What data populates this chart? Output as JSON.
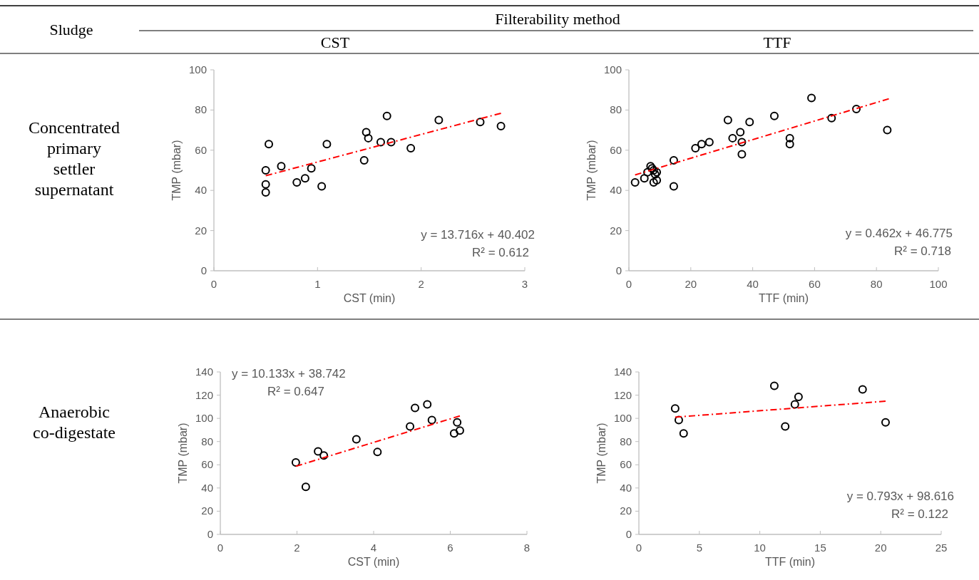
{
  "chart_data": [
    {
      "type": "other",
      "annotations": [
        "Sludge",
        "Filterability method",
        "CST",
        "TTF",
        "Concentrated primary settler supernatant",
        "Anaerobic co-digestate"
      ]
    },
    {
      "type": "scatter",
      "xlabel": "CST (min)",
      "ylabel": "TMP (mbar)",
      "xlim": [
        0,
        3
      ],
      "xticks": [
        0,
        1,
        2,
        3
      ],
      "ylim": [
        0,
        100
      ],
      "yticks": [
        0,
        20,
        40,
        60,
        80,
        100
      ],
      "annotations": [
        "y = 13.716x + 40.402",
        "R² = 0.612"
      ],
      "series": [
        {
          "type": "scatter",
          "marker": "circle",
          "color": "#000000",
          "x": [
            0.5,
            0.5,
            0.5,
            0.53,
            0.65,
            0.8,
            0.88,
            0.94,
            1.04,
            1.09,
            1.45,
            1.47,
            1.49,
            1.61,
            1.67,
            1.71,
            1.9,
            2.17,
            2.57,
            2.77
          ],
          "values": [
            50,
            43,
            39,
            63,
            52,
            44,
            46,
            51,
            42,
            63,
            55,
            69,
            66,
            64,
            77,
            64,
            61,
            75,
            74,
            72
          ]
        },
        {
          "type": "line",
          "color": "#ff0000",
          "line_style": "dashed",
          "x": [
            0.5,
            2.77
          ],
          "values": [
            47.3,
            78.4
          ]
        }
      ]
    },
    {
      "type": "scatter",
      "xlabel": "TTF (min)",
      "ylabel": "TMP (mbar)",
      "xlim": [
        0,
        100
      ],
      "xticks": [
        0,
        20,
        40,
        60,
        80,
        100
      ],
      "ylim": [
        0,
        100
      ],
      "yticks": [
        0,
        20,
        40,
        60,
        80,
        100
      ],
      "annotations": [
        "y = 0.462x + 46.775",
        "R² = 0.718"
      ],
      "series": [
        {
          "type": "scatter",
          "marker": "circle",
          "color": "#000000",
          "x": [
            2,
            5,
            6,
            7,
            7.5,
            8,
            8.5,
            8,
            9,
            9,
            14.5,
            14.5,
            21.5,
            23.5,
            26,
            32,
            33.5,
            36,
            36.5,
            36.5,
            39,
            47,
            52,
            52,
            59,
            65.5,
            73.5,
            83.5
          ],
          "values": [
            44,
            46,
            49,
            52,
            51,
            50,
            48,
            44,
            45,
            49,
            55,
            42,
            61,
            63,
            64,
            75,
            66,
            69,
            58,
            64,
            74,
            77,
            66,
            63,
            86,
            76,
            80.5,
            70
          ]
        },
        {
          "type": "line",
          "color": "#ff0000",
          "line_style": "dashed",
          "x": [
            2,
            84
          ],
          "values": [
            47.7,
            85.6
          ]
        }
      ]
    },
    {
      "type": "scatter",
      "xlabel": "CST (min)",
      "ylabel": "TMP (mbar)",
      "xlim": [
        0,
        8
      ],
      "xticks": [
        0,
        2,
        4,
        6,
        8
      ],
      "ylim": [
        0,
        140
      ],
      "yticks": [
        0,
        20,
        40,
        60,
        80,
        100,
        120,
        140
      ],
      "annotations": [
        "y = 10.133x + 38.742",
        "R² = 0.647"
      ],
      "series": [
        {
          "type": "scatter",
          "marker": "circle",
          "color": "#000000",
          "x": [
            1.97,
            2.23,
            2.55,
            2.7,
            3.55,
            4.1,
            4.95,
            5.08,
            5.4,
            5.52,
            6.1,
            6.18,
            6.25
          ],
          "values": [
            62,
            41,
            71.5,
            68,
            82,
            71,
            93,
            109,
            112,
            98.5,
            87,
            96.5,
            89.5
          ]
        },
        {
          "type": "line",
          "color": "#ff0000",
          "line_style": "dashed",
          "x": [
            1.97,
            6.25
          ],
          "values": [
            58.7,
            102.1
          ]
        }
      ]
    },
    {
      "type": "scatter",
      "xlabel": "TTF (min)",
      "ylabel": "TMP (mbar)",
      "xlim": [
        0,
        25
      ],
      "xticks": [
        0,
        5,
        10,
        15,
        20,
        25
      ],
      "ylim": [
        0,
        140
      ],
      "yticks": [
        0,
        20,
        40,
        60,
        80,
        100,
        120,
        140
      ],
      "annotations": [
        "y = 0.793x + 98.616",
        "R² = 0.122"
      ],
      "series": [
        {
          "type": "scatter",
          "marker": "circle",
          "color": "#000000",
          "x": [
            3,
            3.3,
            3.7,
            11.2,
            12.1,
            12.9,
            13.2,
            18.5,
            20.4
          ],
          "values": [
            108.5,
            98.5,
            87,
            128,
            93,
            112,
            118.5,
            125,
            96.5
          ]
        },
        {
          "type": "line",
          "color": "#ff0000",
          "line_style": "dashed",
          "x": [
            3,
            20.4
          ],
          "values": [
            101,
            114.8
          ]
        }
      ]
    }
  ]
}
